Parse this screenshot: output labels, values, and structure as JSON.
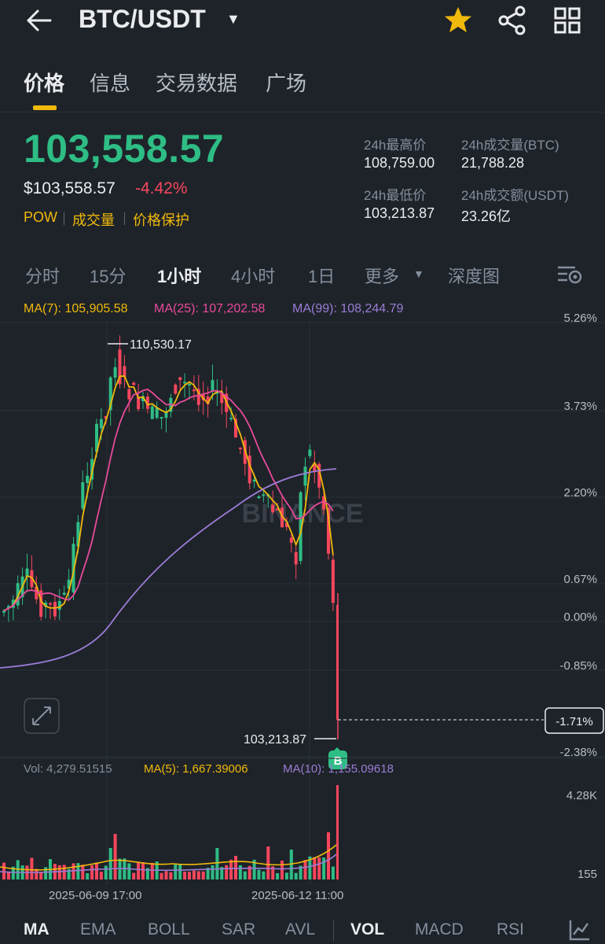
{
  "header": {
    "pair": "BTC/USDT",
    "icons": [
      "back-arrow-icon",
      "dropdown-caret-icon",
      "star-icon",
      "share-icon",
      "grid-icon"
    ],
    "star_color": "#f0b90b"
  },
  "tabs": [
    {
      "label": "价格",
      "active": true
    },
    {
      "label": "信息",
      "active": false
    },
    {
      "label": "交易数据",
      "active": false
    },
    {
      "label": "广场",
      "active": false
    }
  ],
  "price": {
    "last": "103,558.57",
    "usd": "$103,558.57",
    "change": "-4.42%",
    "tags": [
      "POW",
      "成交量",
      "价格保护"
    ]
  },
  "stats": {
    "high_label": "24h最高价",
    "high_value": "108,759.00",
    "vol_btc_label": "24h成交量(BTC)",
    "vol_btc_value": "21,788.28",
    "low_label": "24h最低价",
    "low_value": "103,213.87",
    "vol_usdt_label": "24h成交额(USDT)",
    "vol_usdt_value": "23.26亿"
  },
  "intervals": [
    {
      "label": "分时",
      "active": false
    },
    {
      "label": "15分",
      "active": false
    },
    {
      "label": "1小时",
      "active": true
    },
    {
      "label": "4小时",
      "active": false
    },
    {
      "label": "1日",
      "active": false
    },
    {
      "label": "更多",
      "active": false
    },
    {
      "label": "深度图",
      "active": false
    }
  ],
  "ma_legend": {
    "ma7": "MA(7): 105,905.58",
    "ma25": "MA(25): 107,202.58",
    "ma99": "MA(99): 108,244.79"
  },
  "colors": {
    "up": "#2ebd85",
    "down": "#f6465d",
    "ma7": "#f0b90b",
    "ma25": "#e84a9c",
    "ma99": "#9b7cd6"
  },
  "chart_data": {
    "type": "candlestick",
    "y_axis_labels": [
      "5.26%",
      "3.73%",
      "2.20%",
      "0.67%",
      "0.00%",
      "-0.85%",
      "-2.38%"
    ],
    "current_marker": "-1.71%",
    "high_annotation": "110,530.17",
    "low_annotation": "103,213.87",
    "buy_marker": "B",
    "watermark": "BINANCE",
    "x_labels": [
      "2025-06-09 17:00",
      "2025-06-12 11:00"
    ]
  },
  "volume": {
    "vol": "Vol: 4,279.51515",
    "ma5": "MA(5): 1,667.39006",
    "ma10": "MA(10): 1,155.09618",
    "axis_top": "4.28K",
    "axis_bottom": "155"
  },
  "bottom_tabs": [
    {
      "label": "MA",
      "active": true
    },
    {
      "label": "EMA",
      "active": false
    },
    {
      "label": "BOLL",
      "active": false
    },
    {
      "label": "SAR",
      "active": false
    },
    {
      "label": "AVL",
      "active": false
    },
    {
      "label": "VOL",
      "active": true
    },
    {
      "label": "MACD",
      "active": false
    },
    {
      "label": "RSI",
      "active": false
    }
  ]
}
